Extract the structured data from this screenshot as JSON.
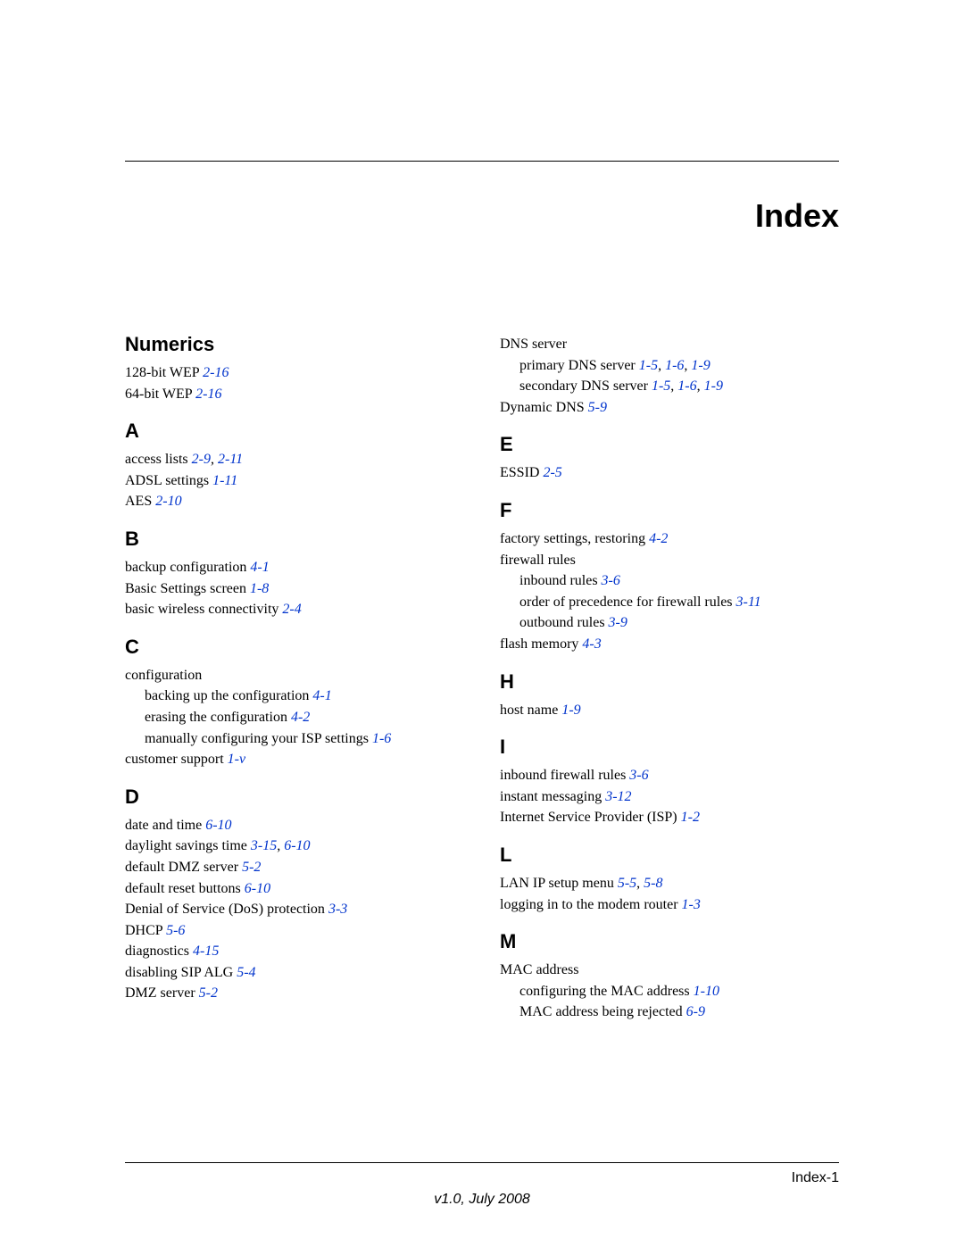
{
  "colors": {
    "text": "#000000",
    "link": "#0033cc",
    "rule": "#000000",
    "background": "#ffffff"
  },
  "typography": {
    "body_family": "Times New Roman",
    "heading_family": "Arial",
    "title_size_pt": 27,
    "section_size_pt": 17,
    "entry_size_pt": 12,
    "footer_size_pt": 12
  },
  "title": "Index",
  "page_label": "Index-1",
  "footer": "v1.0, July 2008",
  "left": {
    "Numerics": [
      {
        "t": [
          "128-bit WEP"
        ],
        "r": [
          "2-16"
        ]
      },
      {
        "t": [
          "64-bit WEP"
        ],
        "r": [
          "2-16"
        ]
      }
    ],
    "A": [
      {
        "t": [
          "access lists"
        ],
        "r": [
          "2-9",
          "2-11"
        ]
      },
      {
        "t": [
          "ADSL settings"
        ],
        "r": [
          "1-11"
        ]
      },
      {
        "t": [
          "AES"
        ],
        "r": [
          "2-10"
        ]
      }
    ],
    "B": [
      {
        "t": [
          "backup configuration"
        ],
        "r": [
          "4-1"
        ]
      },
      {
        "t": [
          "Basic Settings screen"
        ],
        "r": [
          "1-8"
        ]
      },
      {
        "t": [
          "basic wireless connectivity"
        ],
        "r": [
          "2-4"
        ]
      }
    ],
    "C": [
      {
        "t": [
          "configuration"
        ]
      },
      {
        "t": [
          "backing up the configuration"
        ],
        "r": [
          "4-1"
        ],
        "sub": true
      },
      {
        "t": [
          "erasing the configuration"
        ],
        "r": [
          "4-2"
        ],
        "sub": true
      },
      {
        "t": [
          "manually configuring your ISP settings"
        ],
        "r": [
          "1-6"
        ],
        "sub": true
      },
      {
        "t": [
          "customer support"
        ],
        "r": [
          "1-v"
        ]
      }
    ],
    "D": [
      {
        "t": [
          "date and time"
        ],
        "r": [
          "6-10"
        ]
      },
      {
        "t": [
          "daylight savings time"
        ],
        "r": [
          "3-15",
          "6-10"
        ]
      },
      {
        "t": [
          "default DMZ server"
        ],
        "r": [
          "5-2"
        ]
      },
      {
        "t": [
          "default reset buttons"
        ],
        "r": [
          "6-10"
        ]
      },
      {
        "t": [
          "Denial of Service (DoS) protection"
        ],
        "r": [
          "3-3"
        ]
      },
      {
        "t": [
          "DHCP"
        ],
        "r": [
          "5-6"
        ]
      },
      {
        "t": [
          "diagnostics"
        ],
        "r": [
          "4-15"
        ]
      },
      {
        "t": [
          "disabling SIP ALG"
        ],
        "r": [
          "5-4"
        ]
      },
      {
        "t": [
          "DMZ server"
        ],
        "r": [
          "5-2"
        ]
      }
    ]
  },
  "right": {
    "D_cont": [
      {
        "t": [
          "DNS server"
        ]
      },
      {
        "t": [
          "primary DNS server"
        ],
        "r": [
          "1-5",
          "1-6",
          "1-9"
        ],
        "sub": true
      },
      {
        "t": [
          "secondary DNS server"
        ],
        "r": [
          "1-5",
          "1-6",
          "1-9"
        ],
        "sub": true
      },
      {
        "t": [
          "Dynamic DNS"
        ],
        "r": [
          "5-9"
        ]
      }
    ],
    "E": [
      {
        "t": [
          "ESSID"
        ],
        "r": [
          "2-5"
        ]
      }
    ],
    "F": [
      {
        "t": [
          "factory settings, restoring"
        ],
        "r": [
          "4-2"
        ]
      },
      {
        "t": [
          "firewall rules"
        ]
      },
      {
        "t": [
          "inbound rules"
        ],
        "r": [
          "3-6"
        ],
        "sub": true
      },
      {
        "t": [
          "order of precedence for firewall rules"
        ],
        "r": [
          "3-11"
        ],
        "sub": true
      },
      {
        "t": [
          "outbound rules"
        ],
        "r": [
          "3-9"
        ],
        "sub": true
      },
      {
        "t": [
          "flash memory"
        ],
        "r": [
          "4-3"
        ]
      }
    ],
    "H": [
      {
        "t": [
          "host name"
        ],
        "r": [
          "1-9"
        ]
      }
    ],
    "I": [
      {
        "t": [
          "inbound firewall rules"
        ],
        "r": [
          "3-6"
        ]
      },
      {
        "t": [
          "instant messaging"
        ],
        "r": [
          "3-12"
        ]
      },
      {
        "t": [
          "Internet Service Provider (ISP)"
        ],
        "r": [
          "1-2"
        ]
      }
    ],
    "L": [
      {
        "t": [
          "LAN IP setup menu"
        ],
        "r": [
          "5-5",
          "5-8"
        ]
      },
      {
        "t": [
          "logging in to the modem router"
        ],
        "r": [
          "1-3"
        ]
      }
    ],
    "M": [
      {
        "t": [
          "MAC address"
        ]
      },
      {
        "t": [
          "configuring the MAC address"
        ],
        "r": [
          "1-10"
        ],
        "sub": true
      },
      {
        "t": [
          "MAC address being rejected"
        ],
        "r": [
          "6-9"
        ],
        "sub": true
      }
    ]
  }
}
